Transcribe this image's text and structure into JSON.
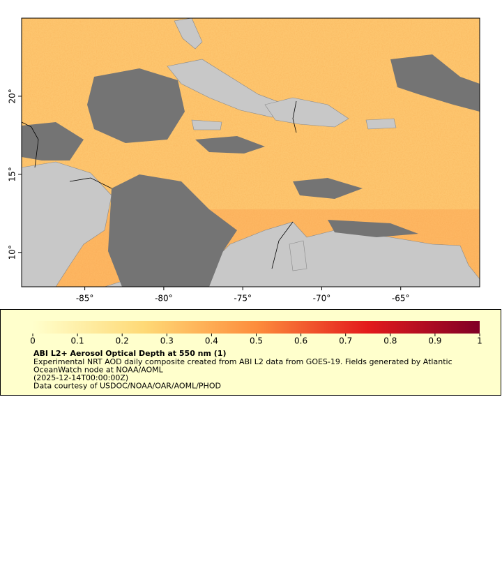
{
  "map": {
    "xlim": [
      -89,
      -60
    ],
    "ylim": [
      7.8,
      25
    ],
    "xticks": [
      {
        "value": -85,
        "label": "-85°"
      },
      {
        "value": -80,
        "label": "-80°"
      },
      {
        "value": -75,
        "label": "-75°"
      },
      {
        "value": -70,
        "label": "-70°"
      },
      {
        "value": -65,
        "label": "-65°"
      }
    ],
    "yticks": [
      {
        "value": 10,
        "label": "10°"
      },
      {
        "value": 15,
        "label": "15°"
      },
      {
        "value": 20,
        "label": "20°"
      }
    ]
  },
  "colorbar": {
    "range": [
      0,
      1
    ],
    "ticks": [
      0,
      0.1,
      0.2,
      0.3,
      0.4,
      0.5,
      0.6,
      0.7,
      0.8,
      0.9,
      1
    ],
    "colors": [
      "#ffffcc",
      "#fed976",
      "#fd8d3c",
      "#e31a1c",
      "#800026"
    ]
  },
  "legend": {
    "title": "ABI L2+ Aerosol Optical Depth at 550 nm (1)",
    "lines": [
      "Experimental NRT AOD daily composite created from ABI L2 data from GOES-19. Fields generated by Atlantic",
      "OceanWatch node at NOAA/AOML",
      "(2025-12-14T00:00:00Z)",
      "Data courtesy of USDOC/NOAA/OAR/AOML/PHOD"
    ]
  }
}
